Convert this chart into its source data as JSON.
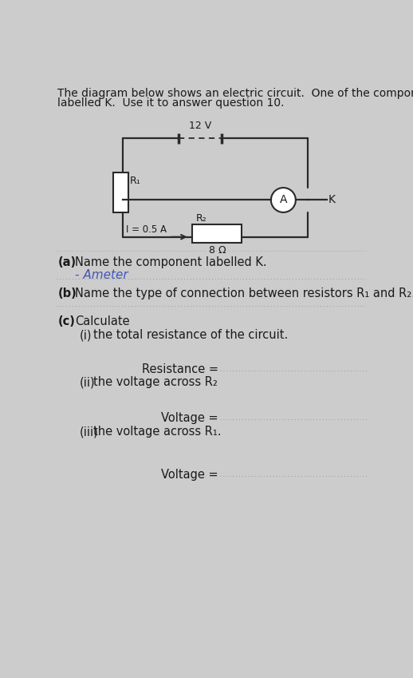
{
  "bg_color": "#cccccc",
  "title_line1": "The diagram below shows an electric circuit.  One of the components is",
  "title_line2": "labelled K.  Use it to answer question 10.",
  "title_fontsize": 10.0,
  "circuit": {
    "battery_label": "12 V",
    "R1_label": "R₁",
    "R2_label": "R₂",
    "R2_value": "8 Ω",
    "ammeter_label": "A",
    "K_label": "K",
    "current_label": "I = 0.5 A"
  },
  "qa": [
    {
      "part": "(a)",
      "text": "Name the component labelled K.",
      "answer": "- Ameter",
      "has_answer": true
    },
    {
      "part": "(b)",
      "text": "Name the type of connection between resistors R₁ and R₂.",
      "has_answer": false
    }
  ],
  "calc_label": "Calculate",
  "sub_questions": [
    {
      "num": "(i)",
      "text": "the total resistance of the circuit.",
      "answer_label": "Resistance ="
    },
    {
      "num": "(ii)",
      "text": "the voltage across R₂",
      "answer_label": "Voltage ="
    },
    {
      "num": "(iii)",
      "text": "the voltage across R₁.",
      "answer_label": "Voltage ="
    }
  ],
  "text_color": "#1a1a1a",
  "answer_color": "#4455bb",
  "dotted_color": "#999999",
  "lc": "#2a2a2a"
}
